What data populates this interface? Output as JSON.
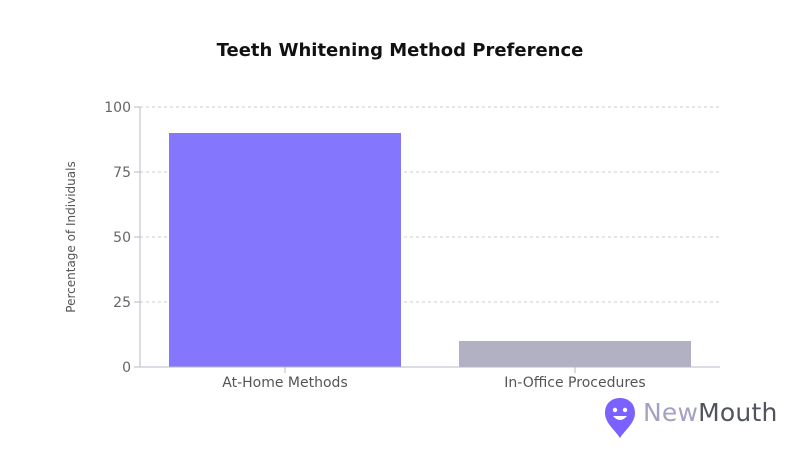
{
  "chart_data": {
    "type": "bar",
    "title": "Teeth Whitening Method Preference",
    "xlabel": "",
    "ylabel": "Percentage of Individuals",
    "categories": [
      "At-Home Methods",
      "In-Office Procedures"
    ],
    "values": [
      90,
      10
    ],
    "bar_colors": [
      "#8577fd",
      "#b2b1c4"
    ],
    "ylim": [
      0,
      100
    ],
    "yticks": [
      0,
      25,
      50,
      75,
      100
    ],
    "grid": true,
    "grid_style": "dashed horizontal"
  },
  "brand": {
    "name_part1": "New",
    "name_part2": "Mouth",
    "icon": "newmouth-logo-icon",
    "color": "#7b61ff"
  }
}
